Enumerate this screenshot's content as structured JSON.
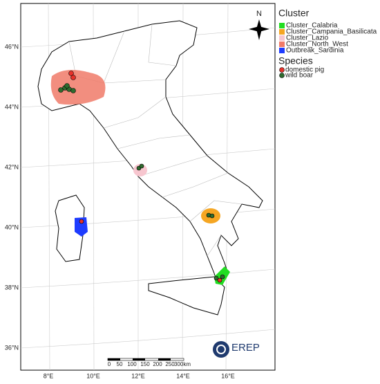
{
  "map": {
    "legend": {
      "cluster_title": "Cluster",
      "clusters": [
        {
          "label": "Cluster_Calabria",
          "color": "#22dd22"
        },
        {
          "label": "Cluster_Campania_Basilicata",
          "color": "#f5a623"
        },
        {
          "label": "Cluster_Lazio",
          "color": "#f7c6cf"
        },
        {
          "label": "Cluster_North_West",
          "color": "#f07a68"
        },
        {
          "label": "Outbreak_Sardinia",
          "color": "#1e3cff"
        }
      ],
      "species_title": "Species",
      "species": [
        {
          "label": "domestic pig",
          "color": "#e8312a"
        },
        {
          "label": "wild boar",
          "color": "#2e6b2e"
        }
      ]
    },
    "lat_labels": [
      "46°N",
      "44°N",
      "42°N",
      "40°N",
      "38°N",
      "36°N"
    ],
    "lon_labels": [
      "8°E",
      "10°E",
      "12°E",
      "14°E",
      "16°E"
    ],
    "scale_labels": [
      "0",
      "50",
      "100",
      "150",
      "200",
      "250",
      "300km"
    ],
    "north": "N",
    "logo": "EREP"
  }
}
